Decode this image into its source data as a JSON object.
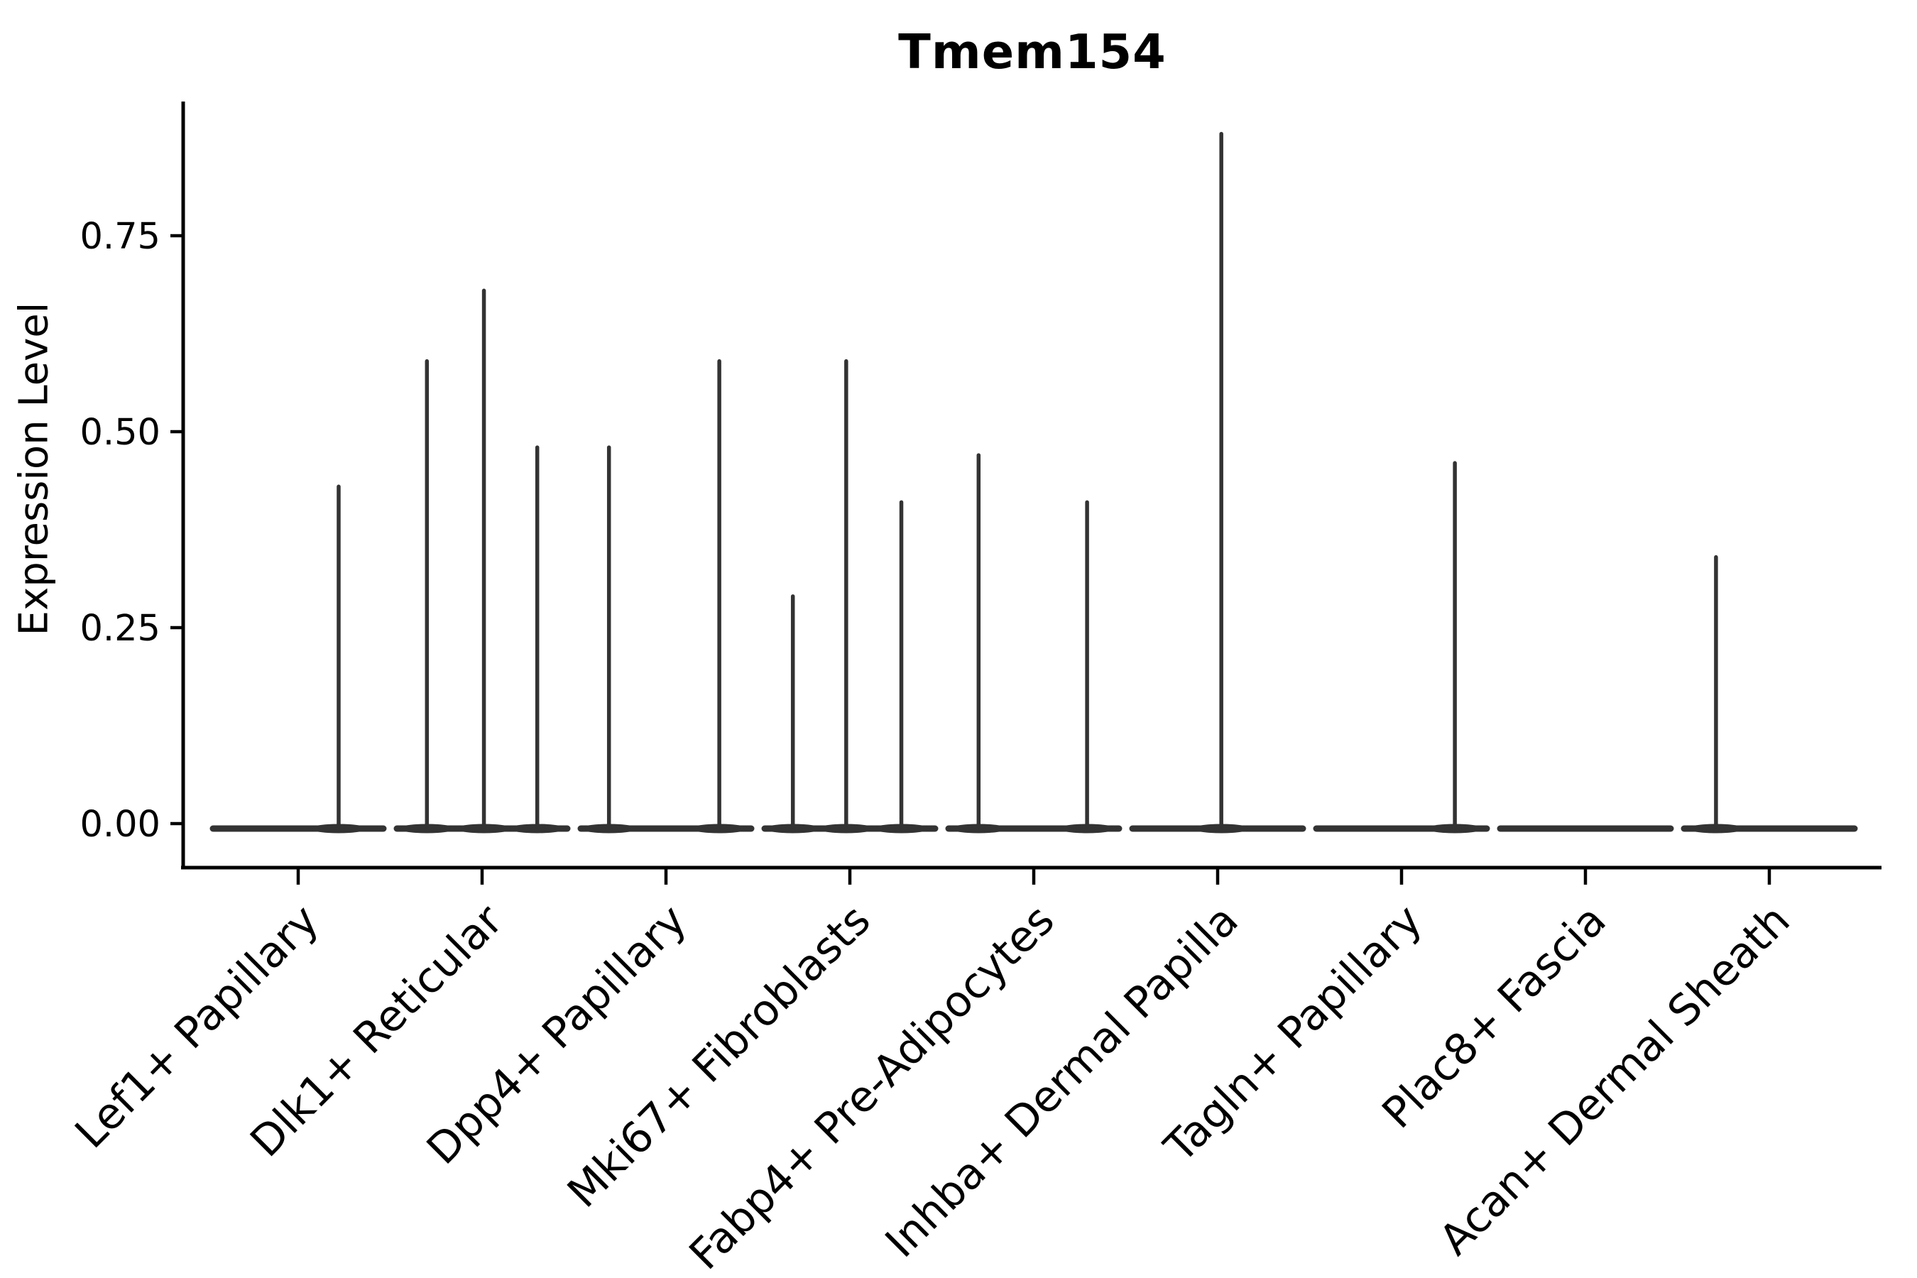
{
  "chart_data": {
    "type": "violin",
    "title": "Tmem154",
    "ylabel": "Expression Level",
    "xlabel": "",
    "ylim": [
      0,
      0.92
    ],
    "grid": false,
    "legend_position": "none",
    "ytick_labels": [
      "0.00",
      "0.25",
      "0.50",
      "0.75"
    ],
    "ytick_values": [
      0.0,
      0.25,
      0.5,
      0.75
    ],
    "colors": {
      "violin_stroke": "#333333",
      "axis": "#000000",
      "text": "#000000",
      "background": "#ffffff"
    },
    "categories": [
      {
        "label": "Lef1+ Papillary",
        "baseline_value": 0.0,
        "spikes": [
          {
            "pos": 0.22,
            "max": 0.43
          }
        ]
      },
      {
        "label": "Dlk1+ Reticular",
        "baseline_value": 0.0,
        "spikes": [
          {
            "pos": -0.3,
            "max": 0.59
          },
          {
            "pos": 0.01,
            "max": 0.68
          },
          {
            "pos": 0.3,
            "max": 0.48
          }
        ]
      },
      {
        "label": "Dpp4+ Papillary",
        "baseline_value": 0.0,
        "spikes": [
          {
            "pos": -0.31,
            "max": 0.48
          },
          {
            "pos": 0.29,
            "max": 0.59
          }
        ]
      },
      {
        "label": "Mki67+ Fibroblasts",
        "baseline_value": 0.0,
        "spikes": [
          {
            "pos": -0.31,
            "max": 0.29
          },
          {
            "pos": -0.02,
            "max": 0.59
          },
          {
            "pos": 0.28,
            "max": 0.41
          }
        ]
      },
      {
        "label": "Fabp4+ Pre-Adipocytes",
        "baseline_value": 0.0,
        "spikes": [
          {
            "pos": -0.3,
            "max": 0.47
          },
          {
            "pos": 0.29,
            "max": 0.41
          }
        ]
      },
      {
        "label": "Inhba+ Dermal Papilla",
        "baseline_value": 0.0,
        "spikes": [
          {
            "pos": 0.02,
            "max": 0.88
          }
        ]
      },
      {
        "label": "Tagln+ Papillary",
        "baseline_value": 0.0,
        "spikes": [
          {
            "pos": 0.29,
            "max": 0.46
          }
        ]
      },
      {
        "label": "Plac8+ Fascia",
        "baseline_value": 0.0,
        "spikes": []
      },
      {
        "label": "Acan+ Dermal Sheath",
        "baseline_value": 0.0,
        "spikes": [
          {
            "pos": -0.29,
            "max": 0.34
          }
        ]
      }
    ]
  }
}
